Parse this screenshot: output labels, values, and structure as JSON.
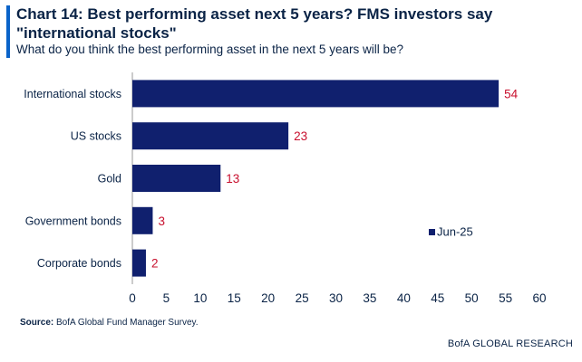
{
  "header": {
    "title": "Chart 14: Best performing asset next 5 years? FMS investors say \"international stocks\"",
    "subtitle": "What do you think the best performing asset in the next 5 years will be?"
  },
  "chart_data": {
    "type": "bar",
    "orientation": "horizontal",
    "categories": [
      "International stocks",
      "US stocks",
      "Gold",
      "Government bonds",
      "Corporate bonds"
    ],
    "series": [
      {
        "name": "Jun-25",
        "values": [
          54,
          23,
          13,
          3,
          2
        ]
      }
    ],
    "data_labels": [
      "54",
      "23",
      "13",
      "3",
      "2"
    ],
    "xlim": [
      0,
      60
    ],
    "xticks": [
      "0",
      "5",
      "10",
      "15",
      "20",
      "25",
      "30",
      "35",
      "40",
      "45",
      "50",
      "55",
      "60"
    ],
    "grid": false,
    "legend_position": "lower-right",
    "colors": {
      "bar": "#10206e",
      "label": "#c8102e",
      "text": "#0a2346"
    }
  },
  "footer": {
    "source_label": "Source:",
    "source_text": " BofA Global Fund Manager Survey.",
    "brand": "BofA GLOBAL RESEARCH"
  }
}
